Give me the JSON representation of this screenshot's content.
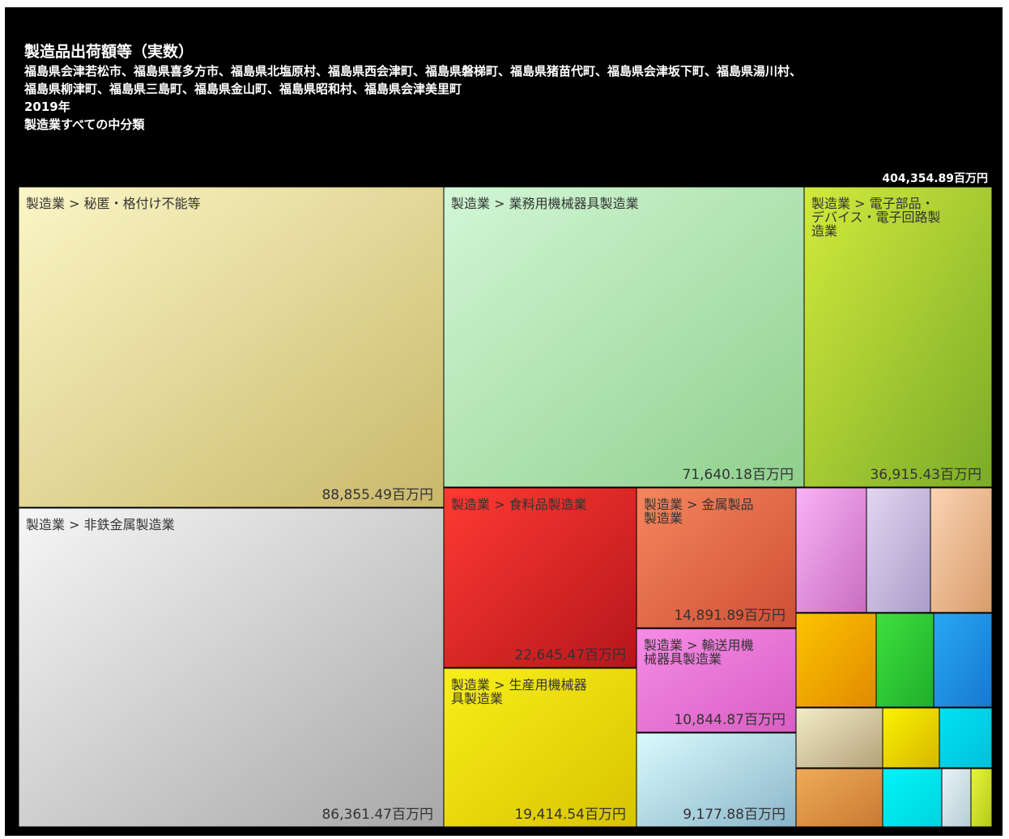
{
  "header": {
    "title": "製造品出荷額等（実数）",
    "regions_line1": "福島県会津若松市、福島県喜多方市、福島県北塩原村、福島県西会津町、福島県磐梯町、福島県猪苗代町、福島県会津坂下町、福島県湯川村、",
    "regions_line2": "福島県柳津町、福島県三島町、福島県金山町、福島県昭和村、福島県会津美里町",
    "year": "2019年",
    "scope": "製造業すべての中分類"
  },
  "total_label": "404,354.89百万円",
  "chart_data": {
    "type": "treemap",
    "unit": "百万円",
    "total": 404354.89,
    "nodes": [
      {
        "label": "製造業 > 秘匿・格付け不能等",
        "value": 88855.49,
        "value_label": "88,855.49百万円",
        "color_start": "#fbf6c6",
        "color_end": "#c9b86a"
      },
      {
        "label": "製造業 > 非鉄金属製造業",
        "value": 86361.47,
        "value_label": "86,361.47百万円",
        "color_start": "#f6f6f6",
        "color_end": "#a8a8a8"
      },
      {
        "label": "製造業 > 業務用機械器具製造業",
        "value": 71640.18,
        "value_label": "71,640.18百万円",
        "color_start": "#d2f7d6",
        "color_end": "#8fcf8c"
      },
      {
        "label": "製造業 > 電子部品・デバイス・電子回路製造業",
        "value": 36915.43,
        "value_label": "36,915.43百万円",
        "color_start": "#d2ea3c",
        "color_end": "#7aab28"
      },
      {
        "label": "製造業 > 食料品製造業",
        "value": 22645.47,
        "value_label": "22,645.47百万円",
        "color_start": "#ff3a32",
        "color_end": "#b5161c"
      },
      {
        "label": "製造業 > 生産用機械器具製造業",
        "value": 19414.54,
        "value_label": "19,414.54百万円",
        "color_start": "#f8ef1a",
        "color_end": "#d8c300"
      },
      {
        "label": "製造業 > 金属製品製造業",
        "value": 14891.89,
        "value_label": "14,891.89百万円",
        "color_start": "#f5865e",
        "color_end": "#cf4f35"
      },
      {
        "label": "製造業 > 輸送用機械器具製造業",
        "value": 10844.87,
        "value_label": "10,844.87百万円",
        "color_start": "#f58ce6",
        "color_end": "#d85ec3"
      },
      {
        "label": "",
        "value": 9177.88,
        "value_label": "9,177.88百万円",
        "color_start": "#d9fbfd",
        "color_end": "#8ab5c9"
      },
      {
        "label": "",
        "color_start": "#f9b3f5",
        "color_end": "#c86dc0"
      },
      {
        "label": "",
        "color_start": "#e2d6f2",
        "color_end": "#a99cc7"
      },
      {
        "label": "",
        "color_start": "#fbd4b4",
        "color_end": "#d89c6a"
      },
      {
        "label": "",
        "color_start": "#fdc400",
        "color_end": "#e08a00"
      },
      {
        "label": "",
        "color_start": "#3fe03f",
        "color_end": "#1fae2a"
      },
      {
        "label": "",
        "color_start": "#27a8f5",
        "color_end": "#1778cf"
      },
      {
        "label": "",
        "color_start": "#f2ecc6",
        "color_end": "#b4a27b"
      },
      {
        "label": "",
        "color_start": "#fbf200",
        "color_end": "#d6b700"
      },
      {
        "label": "",
        "color_start": "#00e2f4",
        "color_end": "#00c0d8"
      },
      {
        "label": "",
        "color_start": "#f0ab55",
        "color_end": "#c77a34"
      },
      {
        "label": "",
        "color_start": "#00f4f8",
        "color_end": "#00d4e0"
      },
      {
        "label": "",
        "color_start": "#eaf4f8",
        "color_end": "#b4ccd4"
      },
      {
        "label": "",
        "color_start": "#e8f53a",
        "color_end": "#b4c81c"
      }
    ]
  }
}
